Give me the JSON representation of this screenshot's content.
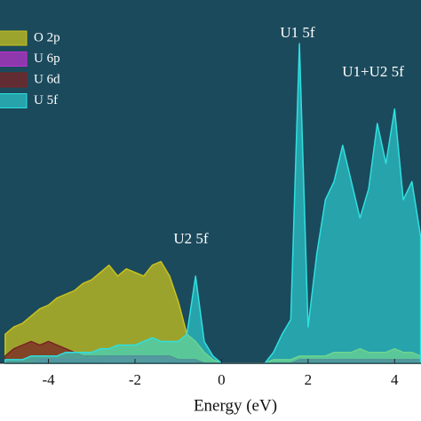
{
  "chart_data": {
    "type": "area",
    "x_label": "Energy (eV)",
    "annotations": [
      "U1 5f",
      "U1+U2 5f",
      "U2 5f"
    ],
    "x": [
      -5.0,
      -4.8,
      -4.6,
      -4.4,
      -4.2,
      -4.0,
      -3.8,
      -3.6,
      -3.4,
      -3.2,
      -3.0,
      -2.8,
      -2.6,
      -2.4,
      -2.2,
      -2.0,
      -1.8,
      -1.6,
      -1.4,
      -1.2,
      -1.0,
      -0.8,
      -0.6,
      -0.4,
      -0.2,
      0.0,
      0.2,
      0.4,
      0.6,
      0.8,
      1.0,
      1.2,
      1.4,
      1.6,
      1.8,
      2.0,
      2.2,
      2.4,
      2.6,
      2.8,
      3.0,
      3.2,
      3.4,
      3.6,
      3.8,
      4.0,
      4.2,
      4.4,
      4.6
    ],
    "xlim": [
      -5.12,
      4.61
    ],
    "xticks": [
      -4,
      -2,
      0,
      2,
      4
    ],
    "ylim": [
      0,
      100
    ],
    "legend": "upper left",
    "series": [
      {
        "name": "O 2p",
        "color": "#c8c21e",
        "values": [
          8,
          10,
          11,
          13,
          15,
          16,
          18,
          19,
          20,
          22,
          23,
          25,
          27,
          24,
          26,
          25,
          24,
          27,
          28,
          24,
          17,
          8,
          6,
          3,
          1,
          0,
          0,
          0,
          0,
          0,
          0,
          1,
          1,
          1,
          2,
          2,
          2,
          2,
          3,
          3,
          3,
          4,
          3,
          3,
          3,
          4,
          3,
          3,
          2
        ]
      },
      {
        "name": "U 6p",
        "color": "#c030d0",
        "values": [
          0,
          0,
          0,
          0,
          1,
          1,
          1,
          1,
          1,
          1,
          1,
          1,
          2,
          2,
          2,
          2,
          2,
          2,
          2,
          1,
          1,
          1,
          1,
          0,
          0,
          0,
          0,
          0,
          0,
          0,
          0,
          0,
          0,
          0,
          1,
          1,
          1,
          1,
          1,
          1,
          1,
          1,
          1,
          1,
          1,
          1,
          1,
          1,
          1
        ]
      },
      {
        "name": "U 6d",
        "color": "#7a2424",
        "values": [
          2,
          4,
          5,
          6,
          5,
          6,
          5,
          4,
          3,
          2,
          2,
          2,
          2,
          2,
          2,
          2,
          2,
          2,
          2,
          2,
          1,
          1,
          1,
          0,
          0,
          0,
          0,
          0,
          0,
          0,
          0,
          0,
          0,
          0,
          1,
          1,
          1,
          1,
          1,
          1,
          1,
          1,
          1,
          1,
          1,
          1,
          1,
          1,
          1
        ]
      },
      {
        "name": "U 5f",
        "color": "#2ee0e0",
        "values": [
          1,
          1,
          1,
          2,
          2,
          2,
          2,
          3,
          3,
          3,
          3,
          4,
          4,
          5,
          5,
          5,
          6,
          7,
          6,
          6,
          6,
          8,
          24,
          6,
          2,
          0,
          0,
          0,
          0,
          0,
          0,
          3,
          8,
          12,
          88,
          10,
          30,
          45,
          50,
          60,
          50,
          40,
          48,
          66,
          55,
          70,
          45,
          50,
          35
        ]
      }
    ]
  }
}
